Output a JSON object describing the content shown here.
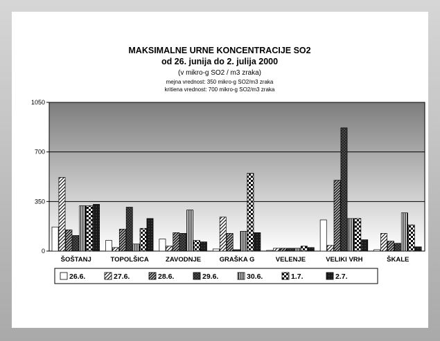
{
  "chart_data": {
    "type": "bar",
    "title": "MAKSIMALNE URNE KONCENTRACIJE SO2",
    "subtitle": "od 26. junija do 2. julija 2000",
    "unit_note": "(v mikro-g SO2 / m3 zraka)",
    "notes": [
      "mejna vrednost:  350 mikro-g SO2/m3 zraka",
      "kritiena vrednost:  700 mikro-g SO2/m3 zraka"
    ],
    "categories": [
      "ŠOŠTANJ",
      "TOPOLŠICA",
      "ZAVODNJE",
      "GRAŠKA G",
      "VELENJE",
      "VELIKI VRH",
      "ŠKALE"
    ],
    "series": [
      {
        "name": "26.6.",
        "values": [
          170,
          75,
          85,
          15,
          5,
          220,
          10
        ]
      },
      {
        "name": "27.6.",
        "values": [
          520,
          25,
          35,
          240,
          20,
          40,
          125
        ]
      },
      {
        "name": "28.6.",
        "values": [
          150,
          155,
          130,
          125,
          20,
          500,
          70
        ]
      },
      {
        "name": "29.6.",
        "values": [
          110,
          310,
          125,
          10,
          20,
          870,
          55
        ]
      },
      {
        "name": "30.6.",
        "values": [
          320,
          50,
          290,
          140,
          20,
          230,
          270
        ]
      },
      {
        "name": "1.7.",
        "values": [
          320,
          160,
          75,
          550,
          35,
          230,
          185
        ]
      },
      {
        "name": "2.7.",
        "values": [
          330,
          230,
          65,
          130,
          25,
          80,
          30
        ]
      }
    ],
    "y_ticks": [
      0,
      350,
      700,
      1050
    ],
    "ylim": [
      0,
      1050
    ],
    "reference_lines": [
      350,
      700
    ],
    "legend_position": "bottom"
  }
}
